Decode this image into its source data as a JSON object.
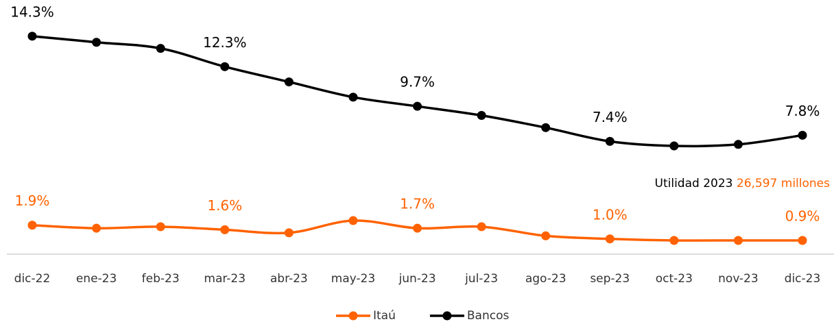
{
  "chart_data": {
    "type": "line",
    "categories": [
      "dic-22",
      "ene-23",
      "feb-23",
      "mar-23",
      "abr-23",
      "may-23",
      "jun-23",
      "jul-23",
      "ago-23",
      "sep-23",
      "oct-23",
      "nov-23",
      "dic-23"
    ],
    "ylim": [
      0,
      16
    ],
    "series": [
      {
        "name": "Itaú",
        "color": "#ff6200",
        "values": [
          1.9,
          1.7,
          1.8,
          1.6,
          1.4,
          2.2,
          1.7,
          1.8,
          1.2,
          1.0,
          0.9,
          0.9,
          0.9
        ],
        "value_labels": [
          "1.9%",
          null,
          null,
          "1.6%",
          null,
          null,
          "1.7%",
          null,
          null,
          "1.0%",
          null,
          null,
          "0.9%"
        ]
      },
      {
        "name": "Bancos",
        "color": "#000000",
        "values": [
          14.3,
          13.9,
          13.5,
          12.3,
          11.3,
          10.3,
          9.7,
          9.1,
          8.3,
          7.4,
          7.1,
          7.2,
          7.8
        ],
        "value_labels": [
          "14.3%",
          null,
          null,
          "12.3%",
          null,
          null,
          "9.7%",
          null,
          null,
          "7.4%",
          null,
          null,
          "7.8%"
        ]
      }
    ],
    "annotation": {
      "label": "Utilidad 2023",
      "value_text": "26,597 millones"
    },
    "legend": "bottom"
  }
}
